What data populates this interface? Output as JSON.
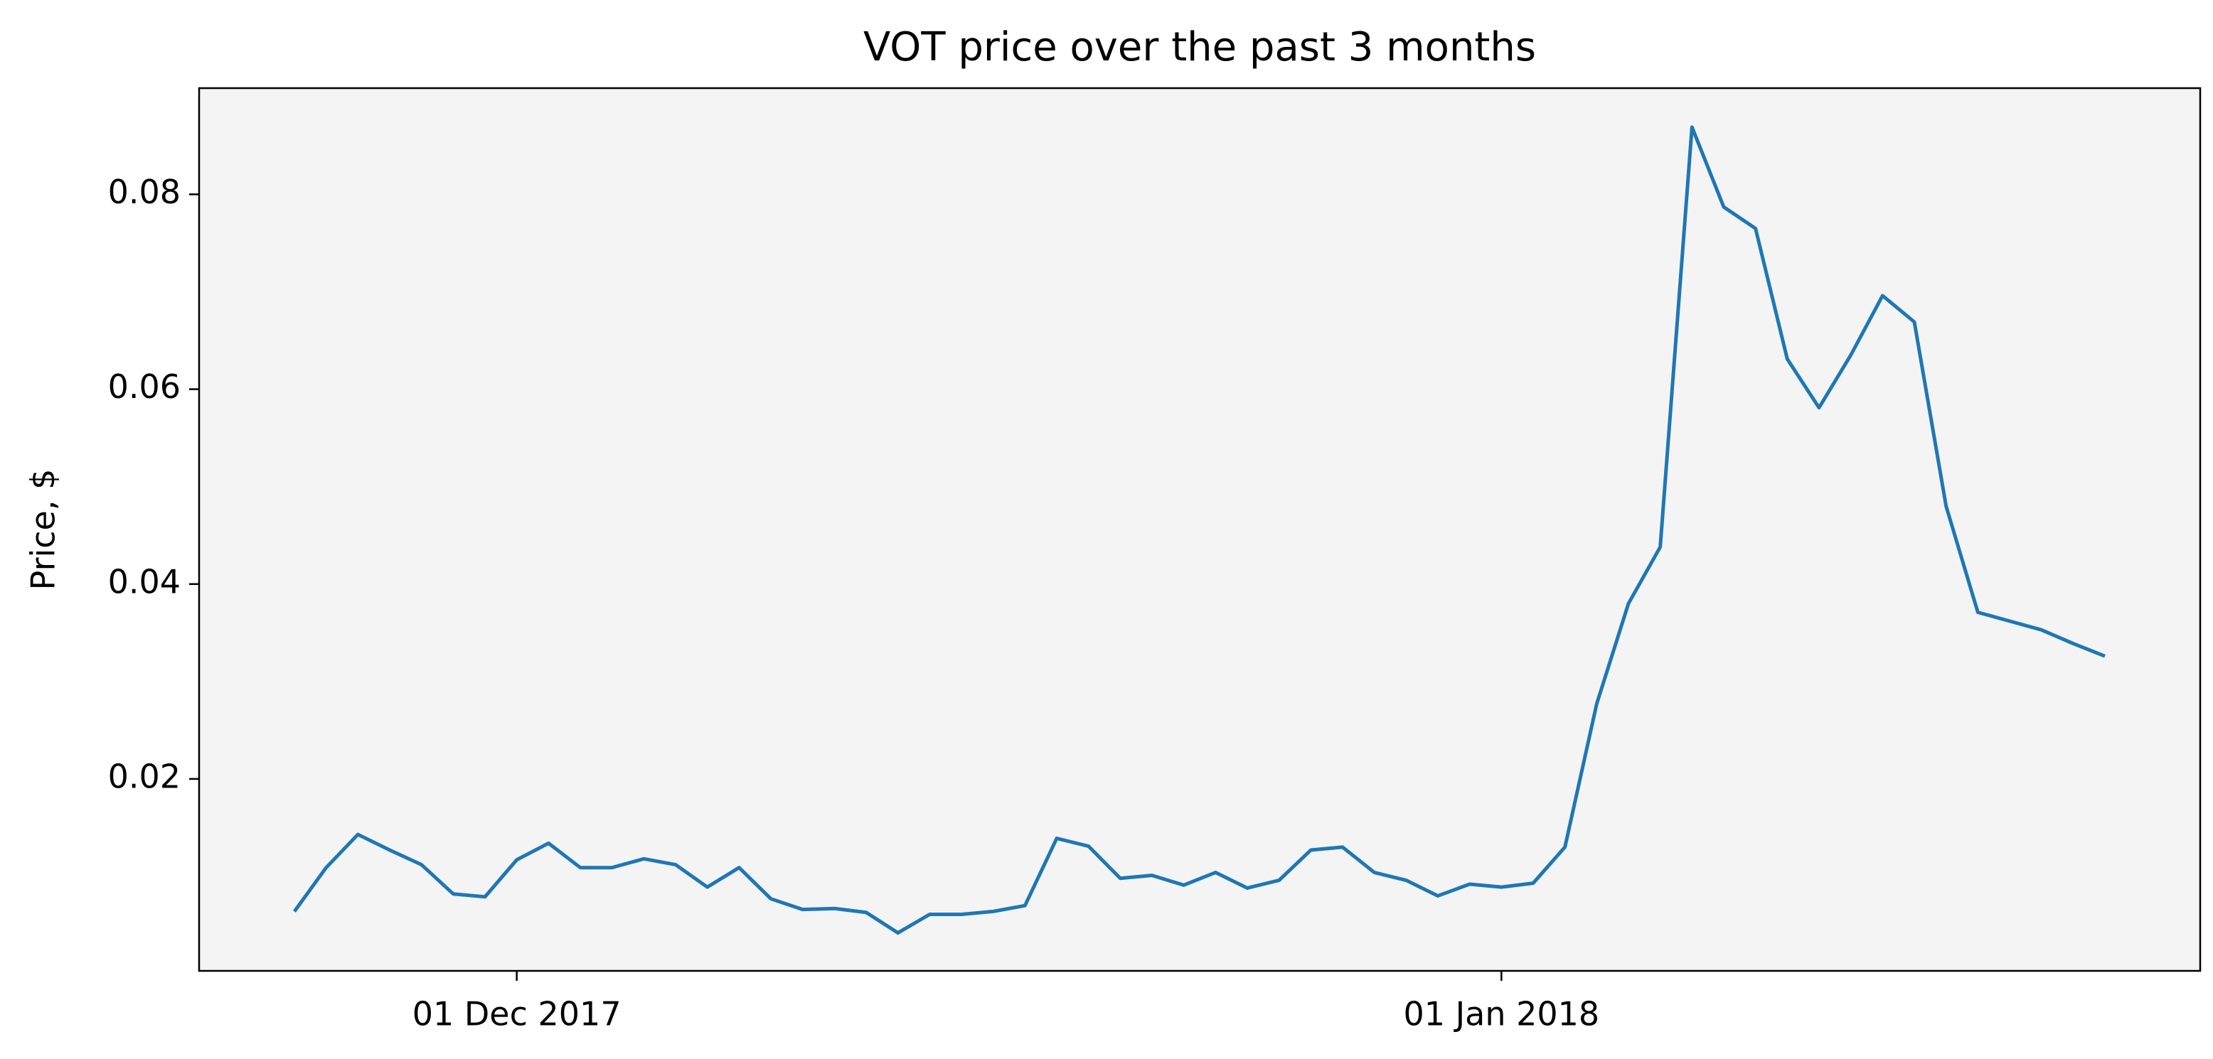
{
  "chart_data": {
    "type": "line",
    "title": "VOT price over the past 3 months",
    "ylabel": "Price, $",
    "x": [
      "2017-11-24",
      "2017-11-25",
      "2017-11-26",
      "2017-11-27",
      "2017-11-28",
      "2017-11-29",
      "2017-11-30",
      "2017-12-01",
      "2017-12-02",
      "2017-12-03",
      "2017-12-04",
      "2017-12-05",
      "2017-12-06",
      "2017-12-07",
      "2017-12-08",
      "2017-12-09",
      "2017-12-10",
      "2017-12-11",
      "2017-12-12",
      "2017-12-13",
      "2017-12-14",
      "2017-12-15",
      "2017-12-16",
      "2017-12-17",
      "2017-12-18",
      "2017-12-19",
      "2017-12-20",
      "2017-12-21",
      "2017-12-22",
      "2017-12-23",
      "2017-12-24",
      "2017-12-25",
      "2017-12-26",
      "2017-12-27",
      "2017-12-28",
      "2017-12-29",
      "2017-12-30",
      "2017-12-31",
      "2018-01-01",
      "2018-01-02",
      "2018-01-03",
      "2018-01-04",
      "2018-01-05",
      "2018-01-06",
      "2018-01-07",
      "2018-01-08",
      "2018-01-09",
      "2018-01-10",
      "2018-01-11",
      "2018-01-12",
      "2018-01-13",
      "2018-01-14",
      "2018-01-15",
      "2018-01-16",
      "2018-01-17",
      "2018-01-18",
      "2018-01-19",
      "2018-01-20"
    ],
    "series": [
      {
        "name": "VOT",
        "color": "#1f77b4",
        "values": [
          0.0064,
          0.0109,
          0.0143,
          0.0127,
          0.0112,
          0.0082,
          0.0079,
          0.0117,
          0.0134,
          0.0109,
          0.0109,
          0.0118,
          0.0112,
          0.0089,
          0.0109,
          0.0077,
          0.0066,
          0.0067,
          0.0063,
          0.0042,
          0.0061,
          0.0061,
          0.0064,
          0.007,
          0.0139,
          0.0131,
          0.0098,
          0.0101,
          0.0091,
          0.0104,
          0.0088,
          0.0096,
          0.0127,
          0.013,
          0.0104,
          0.0096,
          0.008,
          0.0092,
          0.0089,
          0.0093,
          0.013,
          0.0277,
          0.038,
          0.0438,
          0.0869,
          0.0787,
          0.0765,
          0.0631,
          0.0581,
          0.0635,
          0.0696,
          0.0669,
          0.048,
          0.0371,
          0.0362,
          0.0353,
          0.0339,
          0.0326
        ]
      }
    ],
    "xlim": [
      "2017-11-21",
      "2018-01-23"
    ],
    "xticks": [
      {
        "value": "2017-12-01",
        "label": "01 Dec 2017"
      },
      {
        "value": "2018-01-01",
        "label": "01 Jan 2018"
      }
    ],
    "ylim": [
      0.0003,
      0.0909
    ],
    "yticks": [
      0.02,
      0.04,
      0.06,
      0.08
    ],
    "grid": false,
    "background": "#f4f4f4"
  }
}
